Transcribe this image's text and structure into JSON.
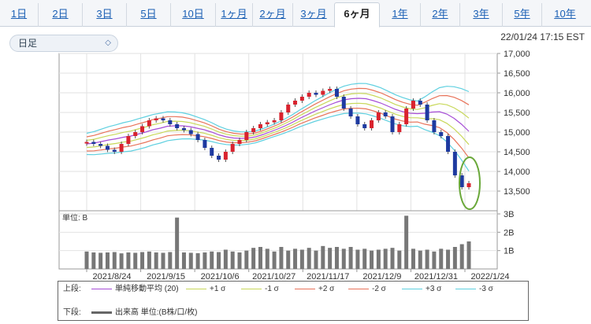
{
  "tabs": [
    {
      "label": "1日"
    },
    {
      "label": "2日"
    },
    {
      "label": "3日"
    },
    {
      "label": "5日"
    },
    {
      "label": "10日"
    },
    {
      "label": "1ヶ月"
    },
    {
      "label": "2ヶ月"
    },
    {
      "label": "3ヶ月"
    },
    {
      "label": "6ヶ月"
    },
    {
      "label": "1年"
    },
    {
      "label": "2年"
    },
    {
      "label": "3年"
    },
    {
      "label": "5年"
    },
    {
      "label": "10年"
    }
  ],
  "active_tab": "6ヶ月",
  "period_select": {
    "value": "日足"
  },
  "timestamp": "22/01/24 17:15 EST",
  "colors": {
    "sma": "#a64dd6",
    "sigma1": "#c8d85a",
    "sigma2": "#e8735a",
    "sigma3": "#5fd0e0",
    "up": "#d9232e",
    "down": "#1e3aa0",
    "volume": "#777777",
    "highlight": "#6aa83a"
  },
  "chart_data": {
    "type": "candlestick",
    "y_ticks": [
      "17,000",
      "16,500",
      "16,000",
      "15,500",
      "15,000",
      "14,500",
      "14,000",
      "13,500"
    ],
    "ylim": [
      13000,
      17000
    ],
    "x_labels": [
      "2021/8/24",
      "2021/9/15",
      "2021/10/6",
      "2021/10/27",
      "2021/11/17",
      "2021/12/9",
      "2021/12/31",
      "2022/1/24"
    ],
    "sma20": [
      14700,
      14720,
      14760,
      14800,
      14830,
      14870,
      14900,
      14950,
      15000,
      15060,
      15100,
      15150,
      15160,
      15160,
      15140,
      15100,
      15060,
      15000,
      14930,
      14880,
      14850,
      14840,
      14850,
      14880,
      14940,
      15010,
      15080,
      15160,
      15250,
      15350,
      15440,
      15530,
      15610,
      15690,
      15760,
      15820,
      15850,
      15860,
      15850,
      15800,
      15740,
      15660,
      15580,
      15520,
      15480,
      15470,
      15480,
      15510,
      15520,
      15460,
      15350,
      15200,
      15020
    ],
    "close": [
      14750,
      14700,
      14650,
      14550,
      14500,
      14700,
      14900,
      15000,
      15150,
      15300,
      15350,
      15300,
      15200,
      15100,
      15050,
      14950,
      14800,
      14600,
      14400,
      14300,
      14500,
      14700,
      14800,
      15000,
      15100,
      15200,
      15250,
      15300,
      15500,
      15700,
      15800,
      15900,
      16000,
      15950,
      16050,
      16100,
      15900,
      15600,
      15400,
      15200,
      15100,
      15300,
      15500,
      15400,
      15000,
      15200,
      15600,
      15800,
      15700,
      15300,
      15000,
      14900,
      14500,
      13900,
      13600,
      13700
    ],
    "volume": [
      0.95,
      0.9,
      0.88,
      0.9,
      0.92,
      0.85,
      0.9,
      0.88,
      0.92,
      0.95,
      0.9,
      0.88,
      0.92,
      2.8,
      0.9,
      0.88,
      0.86,
      0.9,
      0.95,
      0.92,
      1.05,
      0.95,
      0.9,
      1.0,
      1.15,
      1.2,
      1.1,
      0.95,
      1.2,
      1.0,
      1.1,
      1.05,
      1.15,
      1.0,
      1.25,
      1.15,
      1.2,
      1.1,
      1.2,
      1.05,
      1.1,
      1.0,
      1.05,
      1.1,
      1.15,
      1.0,
      2.9,
      1.1,
      1.0,
      1.05,
      0.95,
      1.1,
      1.05,
      1.2,
      1.35,
      1.5
    ],
    "volume_ticks": [
      "3B",
      "2B",
      "1B"
    ],
    "volume_unit_label": "単位: B"
  },
  "legend": {
    "upper_label": "上段:",
    "upper_items": [
      {
        "name": "単純移動平均 (20)",
        "key": "sma"
      },
      {
        "name": "+1 σ",
        "key": "sigma1"
      },
      {
        "name": "-1 σ",
        "key": "sigma1"
      },
      {
        "name": "+2 σ",
        "key": "sigma2"
      },
      {
        "name": "-2 σ",
        "key": "sigma2"
      },
      {
        "name": "+3 σ",
        "key": "sigma3"
      },
      {
        "name": "-3 σ",
        "key": "sigma3"
      }
    ],
    "lower_label": "下段:",
    "lower_item": "出来高 単位:(B株/口/枚)"
  }
}
